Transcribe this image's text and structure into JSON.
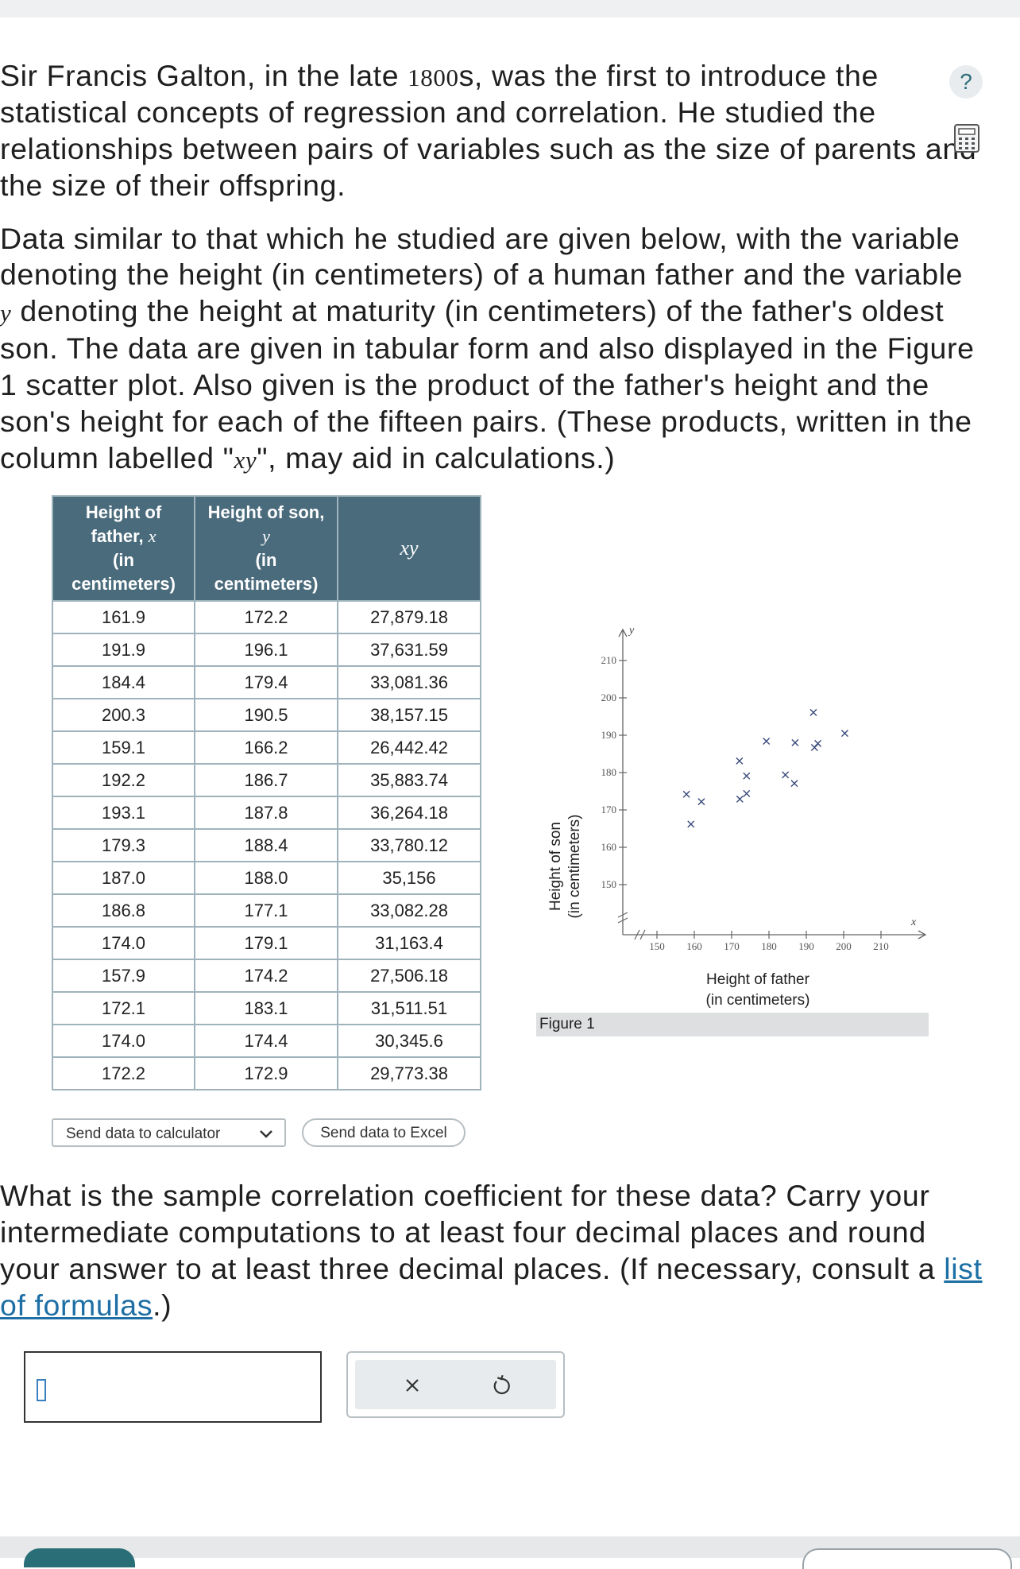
{
  "intro": {
    "line1_a": "Sir Francis Galton, in the late ",
    "line1_year": "1800",
    "line1_b": "s, was the first to introduce the",
    "line2": "statistical concepts of regression and correlation. He studied the",
    "line3": "relationships between pairs of variables such as the size of parents and",
    "line4": "the size of their offspring."
  },
  "description": {
    "line1": "Data similar to that which he studied are given below, with the variable",
    "line2": "denoting the height (in centimeters) of a human father and the variable",
    "line3_var": "y",
    "line3": " denoting the height at maturity (in centimeters) of the father's oldest",
    "line4": "son. The data are given in tabular form and also displayed in the Figure",
    "line5": "1 scatter plot. Also given is the product of the father's height and the",
    "line6": "son's height for each of the fifteen pairs. (These products, written in the",
    "line7_a": "column labelled \"",
    "line7_var": "xy",
    "line7_b": "\", may aid in calculations.)"
  },
  "help_icon": "?",
  "table": {
    "headers": [
      {
        "line1": "Height of",
        "line2": "father, ",
        "var": "x",
        "line3": "(in",
        "line4": "centimeters)"
      },
      {
        "line1": "Height of son,",
        "var": "y",
        "line3": "(in",
        "line4": "centimeters)"
      },
      {
        "var": "xy"
      }
    ],
    "rows": [
      [
        "161.9",
        "172.2",
        "27,879.18"
      ],
      [
        "191.9",
        "196.1",
        "37,631.59"
      ],
      [
        "184.4",
        "179.4",
        "33,081.36"
      ],
      [
        "200.3",
        "190.5",
        "38,157.15"
      ],
      [
        "159.1",
        "166.2",
        "26,442.42"
      ],
      [
        "192.2",
        "186.7",
        "35,883.74"
      ],
      [
        "193.1",
        "187.8",
        "36,264.18"
      ],
      [
        "179.3",
        "188.4",
        "33,780.12"
      ],
      [
        "187.0",
        "188.0",
        "35,156"
      ],
      [
        "186.8",
        "177.1",
        "33,082.28"
      ],
      [
        "174.0",
        "179.1",
        "31,163.4"
      ],
      [
        "157.9",
        "174.2",
        "27,506.18"
      ],
      [
        "172.1",
        "183.1",
        "31,511.51"
      ],
      [
        "174.0",
        "174.4",
        "30,345.6"
      ],
      [
        "172.2",
        "172.9",
        "29,773.38"
      ]
    ]
  },
  "buttons": {
    "send_calculator": "Send data to calculator",
    "send_excel": "Send data to Excel"
  },
  "chart_data": {
    "type": "scatter",
    "title": "",
    "caption": "Figure 1",
    "xlabel_line1": "Height of father",
    "xlabel_line2": "(in centimeters)",
    "ylabel_line1": "Height of son",
    "ylabel_line2": "(in centimeters)",
    "x_axis_var": "x",
    "y_axis_var": "y",
    "xticks": [
      "150",
      "160",
      "170",
      "180",
      "190",
      "200",
      "210"
    ],
    "yticks": [
      "150",
      "160",
      "170",
      "180",
      "190",
      "200",
      "210"
    ],
    "xlim": [
      140,
      220
    ],
    "ylim": [
      140,
      215
    ],
    "axis_breaks": true,
    "marker": "x",
    "marker_color": "#3a4a7a",
    "points": [
      {
        "x": 161.9,
        "y": 172.2
      },
      {
        "x": 191.9,
        "y": 196.1
      },
      {
        "x": 184.4,
        "y": 179.4
      },
      {
        "x": 200.3,
        "y": 190.5
      },
      {
        "x": 159.1,
        "y": 166.2
      },
      {
        "x": 192.2,
        "y": 186.7
      },
      {
        "x": 193.1,
        "y": 187.8
      },
      {
        "x": 179.3,
        "y": 188.4
      },
      {
        "x": 187.0,
        "y": 188.0
      },
      {
        "x": 186.8,
        "y": 177.1
      },
      {
        "x": 174.0,
        "y": 179.1
      },
      {
        "x": 157.9,
        "y": 174.2
      },
      {
        "x": 172.1,
        "y": 183.1
      },
      {
        "x": 174.0,
        "y": 174.4
      },
      {
        "x": 172.2,
        "y": 172.9
      }
    ]
  },
  "question": {
    "line1": "What is the sample correlation coefficient for these data? Carry your",
    "line2": "intermediate computations to at least four decimal places and round",
    "line3_a": "your answer to at least three decimal places. (If necessary, consult a ",
    "line3_link": "list",
    "line4_link": "of formulas",
    "line4_b": ".)"
  },
  "answer": {
    "value": ""
  },
  "colors": {
    "table_header_bg": "#4a6b7c",
    "link": "#1d6fa5",
    "accent": "#2a6e78"
  }
}
